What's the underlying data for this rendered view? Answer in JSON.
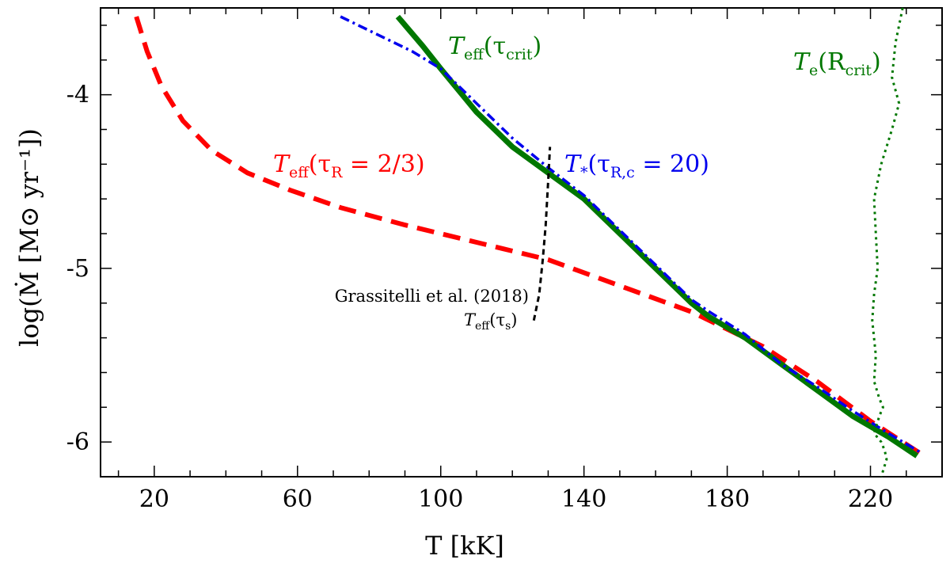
{
  "chart_data": {
    "type": "line",
    "xlabel": "T [kK]",
    "ylabel": "log(Ṁ [M⊙ yr⁻¹])",
    "xlim": [
      5,
      240
    ],
    "ylim": [
      -6.2,
      -3.5
    ],
    "x_ticks": [
      20,
      60,
      100,
      140,
      180,
      220
    ],
    "x_tick_labels": [
      "20",
      "60",
      "100",
      "140",
      "180",
      "220"
    ],
    "y_ticks": [
      -4,
      -5,
      -6
    ],
    "y_tick_labels": [
      "-4",
      "-5",
      "-6"
    ],
    "grid": false,
    "legend": "none",
    "series": [
      {
        "name": "Teff(τR = 2/3)",
        "color": "#ff0000",
        "style": "dashed",
        "x": [
          15,
          18,
          22,
          28,
          36,
          46,
          58,
          72,
          90,
          110,
          130,
          150,
          170,
          190,
          205,
          220,
          235
        ],
        "y": [
          -3.55,
          -3.75,
          -3.95,
          -4.15,
          -4.32,
          -4.45,
          -4.55,
          -4.65,
          -4.75,
          -4.85,
          -4.95,
          -5.1,
          -5.25,
          -5.45,
          -5.65,
          -5.88,
          -6.08
        ]
      },
      {
        "name": "Teff(τcrit)",
        "color": "#007700",
        "style": "solid",
        "x": [
          88,
          95,
          100,
          110,
          120,
          130,
          140,
          150,
          160,
          170,
          175,
          185,
          195,
          205,
          215,
          225,
          233
        ],
        "y": [
          -3.55,
          -3.72,
          -3.85,
          -4.1,
          -4.3,
          -4.45,
          -4.6,
          -4.8,
          -5.0,
          -5.2,
          -5.28,
          -5.4,
          -5.55,
          -5.7,
          -5.85,
          -5.97,
          -6.08
        ]
      },
      {
        "name": "T*(τR,c = 20)",
        "color": "#0000ee",
        "style": "dashdot",
        "x": [
          72,
          82,
          92,
          100,
          110,
          120,
          130,
          140,
          150,
          160,
          170,
          175,
          185,
          195,
          205,
          215,
          225,
          234
        ],
        "y": [
          -3.55,
          -3.65,
          -3.75,
          -3.85,
          -4.05,
          -4.25,
          -4.42,
          -4.58,
          -4.78,
          -4.98,
          -5.18,
          -5.25,
          -5.38,
          -5.55,
          -5.68,
          -5.82,
          -5.95,
          -6.06
        ]
      },
      {
        "name": "Te(Rcrit)",
        "color": "#007700",
        "style": "dotted",
        "x": [
          229,
          227,
          226,
          228,
          226,
          223,
          221,
          221.5,
          222,
          221,
          220.5,
          221.5,
          221,
          222.5,
          223.5,
          222.5,
          221,
          223,
          224,
          224.5,
          223
        ],
        "y": [
          -3.5,
          -3.7,
          -3.9,
          -4.05,
          -4.2,
          -4.4,
          -4.6,
          -4.8,
          -5.0,
          -5.15,
          -5.3,
          -5.5,
          -5.65,
          -5.75,
          -5.8,
          -5.85,
          -5.95,
          -6.0,
          -6.05,
          -6.1,
          -6.2
        ]
      },
      {
        "name": "Teff(τs)",
        "color": "#000000",
        "style": "dashed",
        "x": [
          126,
          127.5,
          128.5,
          129.3,
          130,
          130.5
        ],
        "y": [
          -5.3,
          -5.15,
          -4.95,
          -4.75,
          -4.5,
          -4.3
        ]
      }
    ],
    "annotations": {
      "red": {
        "main": "T",
        "sub": "eff",
        "arg": "(τ",
        "argsub": "R",
        "rest": " = 2/3)"
      },
      "green_solid": {
        "main": "T",
        "sub": "eff",
        "arg": "(τ",
        "argsub": "crit",
        "rest": ")"
      },
      "blue": {
        "main": "T",
        "sub": "*",
        "arg": "(τ",
        "argsub": "R,c",
        "rest": " = 20)"
      },
      "green_dotted": {
        "main": "T",
        "sub": "e",
        "arg": "(R",
        "argsub": "crit",
        "rest": ")"
      },
      "black_cite": "Grassitelli et al. (2018)",
      "black": {
        "main": "T",
        "sub": "eff",
        "arg": "(τ",
        "argsub": "s",
        "rest": ")"
      }
    }
  }
}
